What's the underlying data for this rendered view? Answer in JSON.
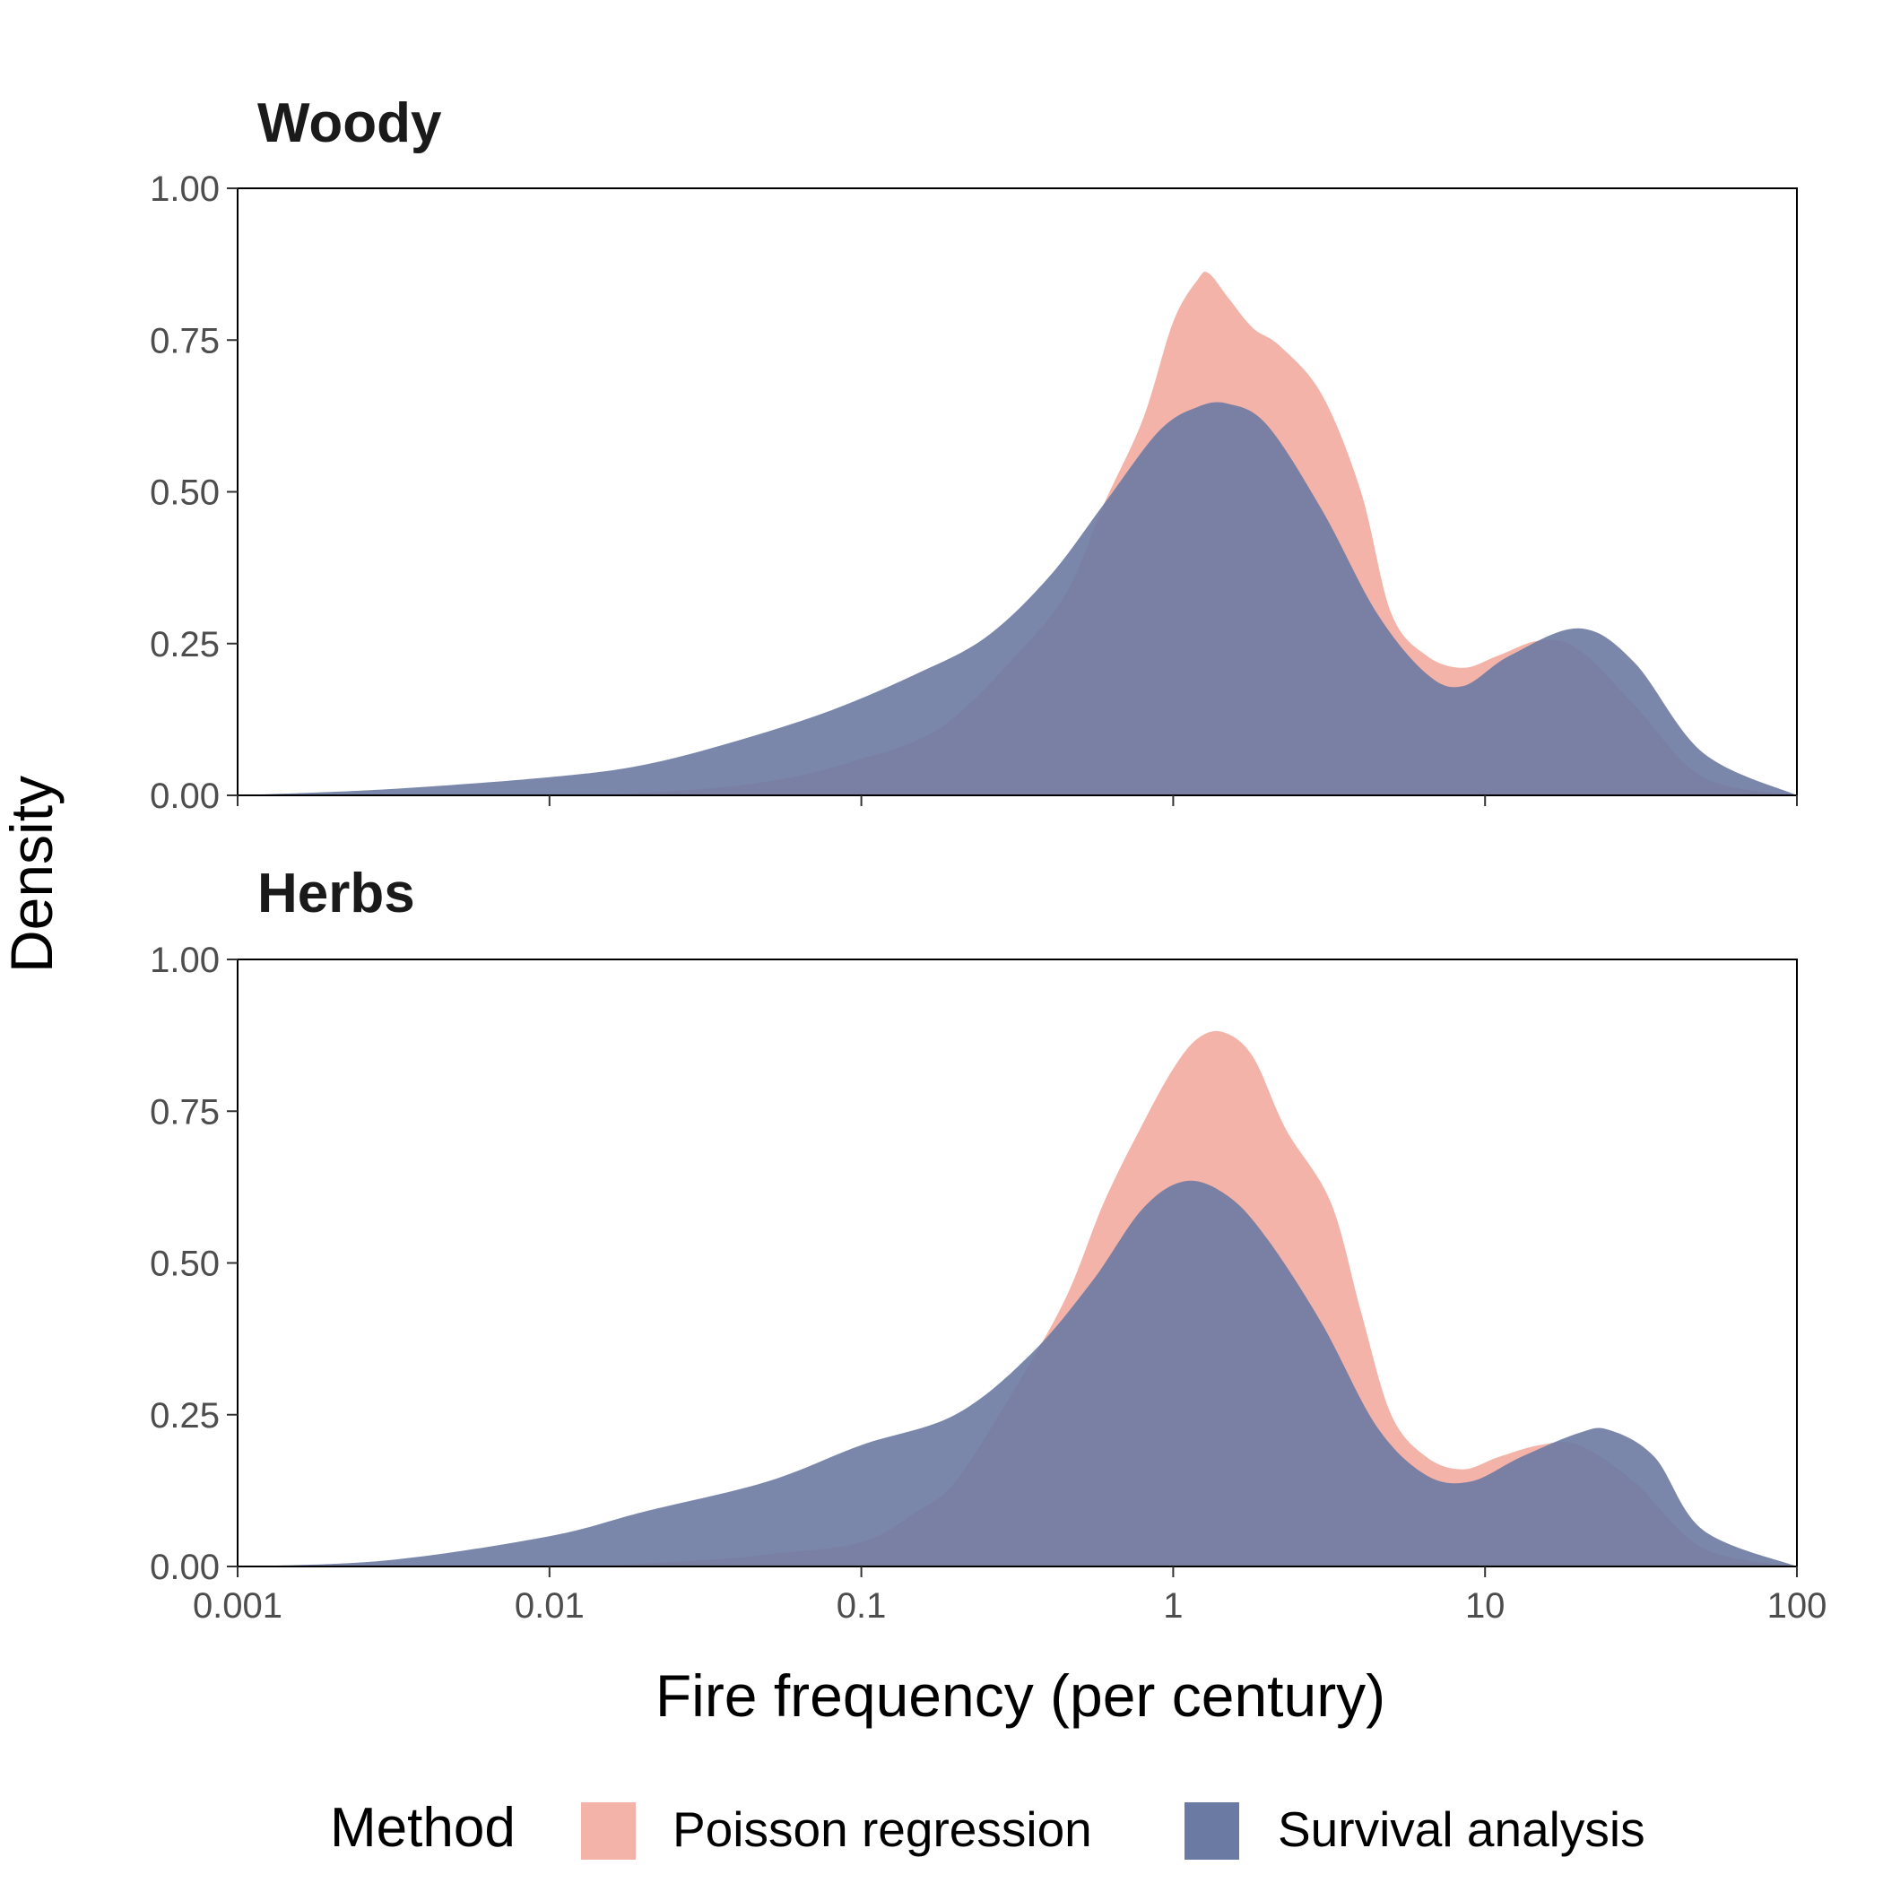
{
  "colors": {
    "poisson": "#F4B3A8",
    "survival": "#6B7AA2",
    "overlap_hint": "#716686"
  },
  "chart_data": [
    {
      "type": "area",
      "title": "Woody",
      "x_scale": "log10",
      "xlim": [
        0.001,
        100
      ],
      "ylim": [
        0,
        1
      ],
      "x_ticks": [
        "0.001",
        "0.01",
        "0.1",
        "1",
        "10",
        "100"
      ],
      "y_ticks": [
        "0.00",
        "0.25",
        "0.50",
        "0.75",
        "1.00"
      ],
      "series": [
        {
          "name": "Poisson regression",
          "x": [
            0.001,
            0.01,
            0.03,
            0.06,
            0.1,
            0.15,
            0.2,
            0.3,
            0.45,
            0.6,
            0.8,
            1.0,
            1.2,
            1.3,
            1.5,
            1.8,
            2.2,
            3.0,
            4.0,
            5.0,
            6.5,
            8.5,
            11,
            15,
            20,
            30,
            50,
            100
          ],
          "y": [
            0.0,
            0.0,
            0.01,
            0.03,
            0.06,
            0.09,
            0.13,
            0.22,
            0.33,
            0.48,
            0.62,
            0.78,
            0.85,
            0.86,
            0.82,
            0.77,
            0.74,
            0.66,
            0.5,
            0.3,
            0.23,
            0.21,
            0.23,
            0.255,
            0.24,
            0.15,
            0.03,
            0.0
          ]
        },
        {
          "name": "Survival analysis",
          "x": [
            0.001,
            0.003,
            0.01,
            0.02,
            0.04,
            0.08,
            0.15,
            0.25,
            0.4,
            0.6,
            0.9,
            1.2,
            1.5,
            2.0,
            3.0,
            4.5,
            6.5,
            8.5,
            12,
            20,
            30,
            50,
            100
          ],
          "y": [
            0.0,
            0.01,
            0.03,
            0.05,
            0.09,
            0.14,
            0.2,
            0.26,
            0.36,
            0.48,
            0.6,
            0.64,
            0.645,
            0.61,
            0.47,
            0.3,
            0.2,
            0.18,
            0.23,
            0.275,
            0.22,
            0.07,
            0.0
          ]
        }
      ]
    },
    {
      "type": "area",
      "title": "Herbs",
      "x_scale": "log10",
      "xlim": [
        0.001,
        100
      ],
      "ylim": [
        0,
        1
      ],
      "x_ticks": [
        "0.001",
        "0.01",
        "0.1",
        "1",
        "10",
        "100"
      ],
      "y_ticks": [
        "0.00",
        "0.25",
        "0.50",
        "0.75",
        "1.00"
      ],
      "series": [
        {
          "name": "Poisson regression",
          "x": [
            0.001,
            0.01,
            0.03,
            0.05,
            0.1,
            0.15,
            0.2,
            0.3,
            0.45,
            0.6,
            0.8,
            1.0,
            1.2,
            1.45,
            1.8,
            2.3,
            3.2,
            4.0,
            5.0,
            6.5,
            8.5,
            11,
            15,
            20,
            30,
            50,
            100
          ],
          "y": [
            0.0,
            0.0,
            0.01,
            0.02,
            0.04,
            0.09,
            0.14,
            0.28,
            0.44,
            0.6,
            0.73,
            0.82,
            0.87,
            0.88,
            0.84,
            0.72,
            0.6,
            0.42,
            0.25,
            0.18,
            0.16,
            0.18,
            0.2,
            0.2,
            0.14,
            0.03,
            0.0
          ]
        },
        {
          "name": "Survival analysis",
          "x": [
            0.001,
            0.003,
            0.01,
            0.02,
            0.05,
            0.1,
            0.2,
            0.35,
            0.55,
            0.8,
            1.1,
            1.5,
            2.0,
            3.0,
            4.5,
            6.5,
            9,
            13,
            20,
            25,
            35,
            50,
            100
          ],
          "y": [
            0.0,
            0.01,
            0.05,
            0.09,
            0.14,
            0.2,
            0.25,
            0.35,
            0.47,
            0.59,
            0.635,
            0.61,
            0.54,
            0.4,
            0.23,
            0.15,
            0.14,
            0.18,
            0.22,
            0.225,
            0.18,
            0.06,
            0.0
          ]
        }
      ]
    }
  ],
  "axes": {
    "xlabel": "Fire frequency (per century)",
    "ylabel": "Density"
  },
  "legend": {
    "title": "Method",
    "items": [
      "Poisson regression",
      "Survival analysis"
    ]
  }
}
